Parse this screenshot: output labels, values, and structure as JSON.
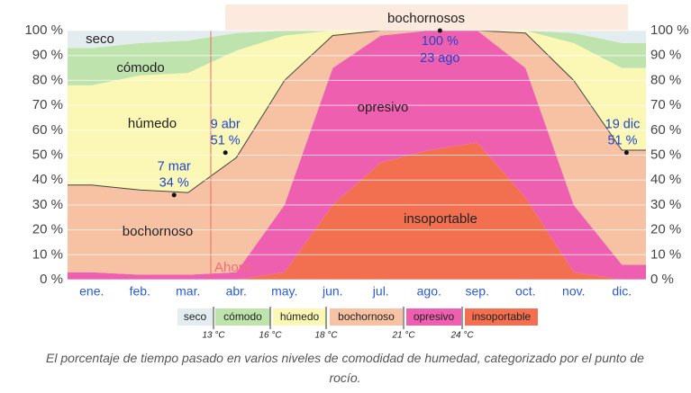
{
  "chart_data": {
    "type": "stacked_area",
    "categories": [
      "ene.",
      "feb.",
      "mar.",
      "abr.",
      "may.",
      "jun.",
      "jul.",
      "ago.",
      "sep.",
      "oct.",
      "nov.",
      "dic."
    ],
    "series": [
      {
        "name": "insoportable",
        "color": "#f2704f",
        "values": [
          0,
          0,
          0,
          0,
          3,
          30,
          47,
          52,
          55,
          33,
          3,
          0
        ]
      },
      {
        "name": "opresivo",
        "color": "#ee5fb0",
        "values": [
          3,
          2,
          2,
          3,
          27,
          55,
          51,
          48,
          45,
          52,
          27,
          6
        ]
      },
      {
        "name": "bochornoso",
        "color": "#f7c2a3",
        "values": [
          35,
          34,
          33,
          46,
          50,
          13,
          2,
          0,
          0,
          14,
          50,
          46
        ]
      },
      {
        "name": "húmedo",
        "color": "#fbf7b4",
        "values": [
          40,
          46,
          48,
          43,
          18,
          2,
          0,
          0,
          0,
          1,
          15,
          33
        ]
      },
      {
        "name": "cómodo",
        "color": "#bfe3ad",
        "values": [
          15,
          13,
          13,
          7,
          2,
          0,
          0,
          0,
          0,
          0,
          4,
          10
        ]
      },
      {
        "name": "seco",
        "color": "#e3ecef",
        "values": [
          7,
          5,
          4,
          1,
          0,
          0,
          0,
          0,
          0,
          0,
          1,
          5
        ]
      }
    ],
    "ylim": [
      0,
      100
    ],
    "yticks": [
      {
        "value": 0,
        "label": "0 %"
      },
      {
        "value": 10,
        "label": "10 %"
      },
      {
        "value": 20,
        "label": "20 %"
      },
      {
        "value": 30,
        "label": "30 %"
      },
      {
        "value": 40,
        "label": "40 %"
      },
      {
        "value": 50,
        "label": "50 %"
      },
      {
        "value": 60,
        "label": "60 %"
      },
      {
        "value": 70,
        "label": "70 %"
      },
      {
        "value": 80,
        "label": "80 %"
      },
      {
        "value": 90,
        "label": "90 %"
      },
      {
        "value": 100,
        "label": "100 %"
      }
    ],
    "grid": true,
    "annotations": [
      {
        "date": "7 mar",
        "value": 34,
        "value_label": "34 %"
      },
      {
        "date": "9 abr",
        "value": 51,
        "value_label": "51 %"
      },
      {
        "date": "23 ago",
        "value": 100,
        "value_label": "100 %"
      },
      {
        "date": "19 dic",
        "value": 51,
        "value_label": "51 %"
      }
    ],
    "now_label": "Ahora",
    "season_band": "bochornosos",
    "legend_thresholds": [
      "13 °C",
      "16 °C",
      "18 °C",
      "21 °C",
      "24 °C"
    ],
    "caption": "El porcentaje de tiempo pasado en varios niveles de comodidad de humedad, categorizado por el punto de rocío."
  }
}
